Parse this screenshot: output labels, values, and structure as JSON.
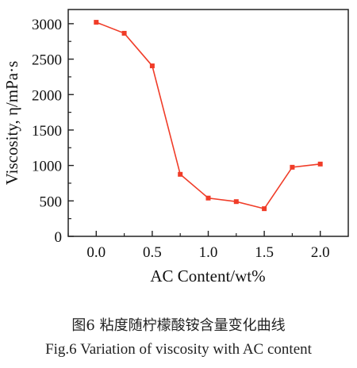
{
  "chart_data": {
    "type": "line",
    "x": [
      0.0,
      0.25,
      0.5,
      0.75,
      1.0,
      1.25,
      1.5,
      1.75,
      2.0
    ],
    "values": [
      3020,
      2865,
      2405,
      875,
      540,
      490,
      390,
      975,
      1020
    ],
    "xlabel": "AC Content/wt%",
    "ylabel": "Viscosity, η/mPa·s",
    "xlim": [
      -0.25,
      2.25
    ],
    "ylim": [
      0,
      3200
    ],
    "xticks": [
      "0.0",
      "0.5",
      "1.0",
      "1.5",
      "2.0"
    ],
    "yticks": [
      "0",
      "500",
      "1000",
      "1500",
      "2000",
      "2500",
      "3000"
    ],
    "grid": false,
    "series_color": "#f03c28"
  },
  "caption": {
    "cn": "图6  粘度随柠檬酸铵含量变化曲线",
    "en": "Fig.6  Variation of viscosity with AC content"
  }
}
